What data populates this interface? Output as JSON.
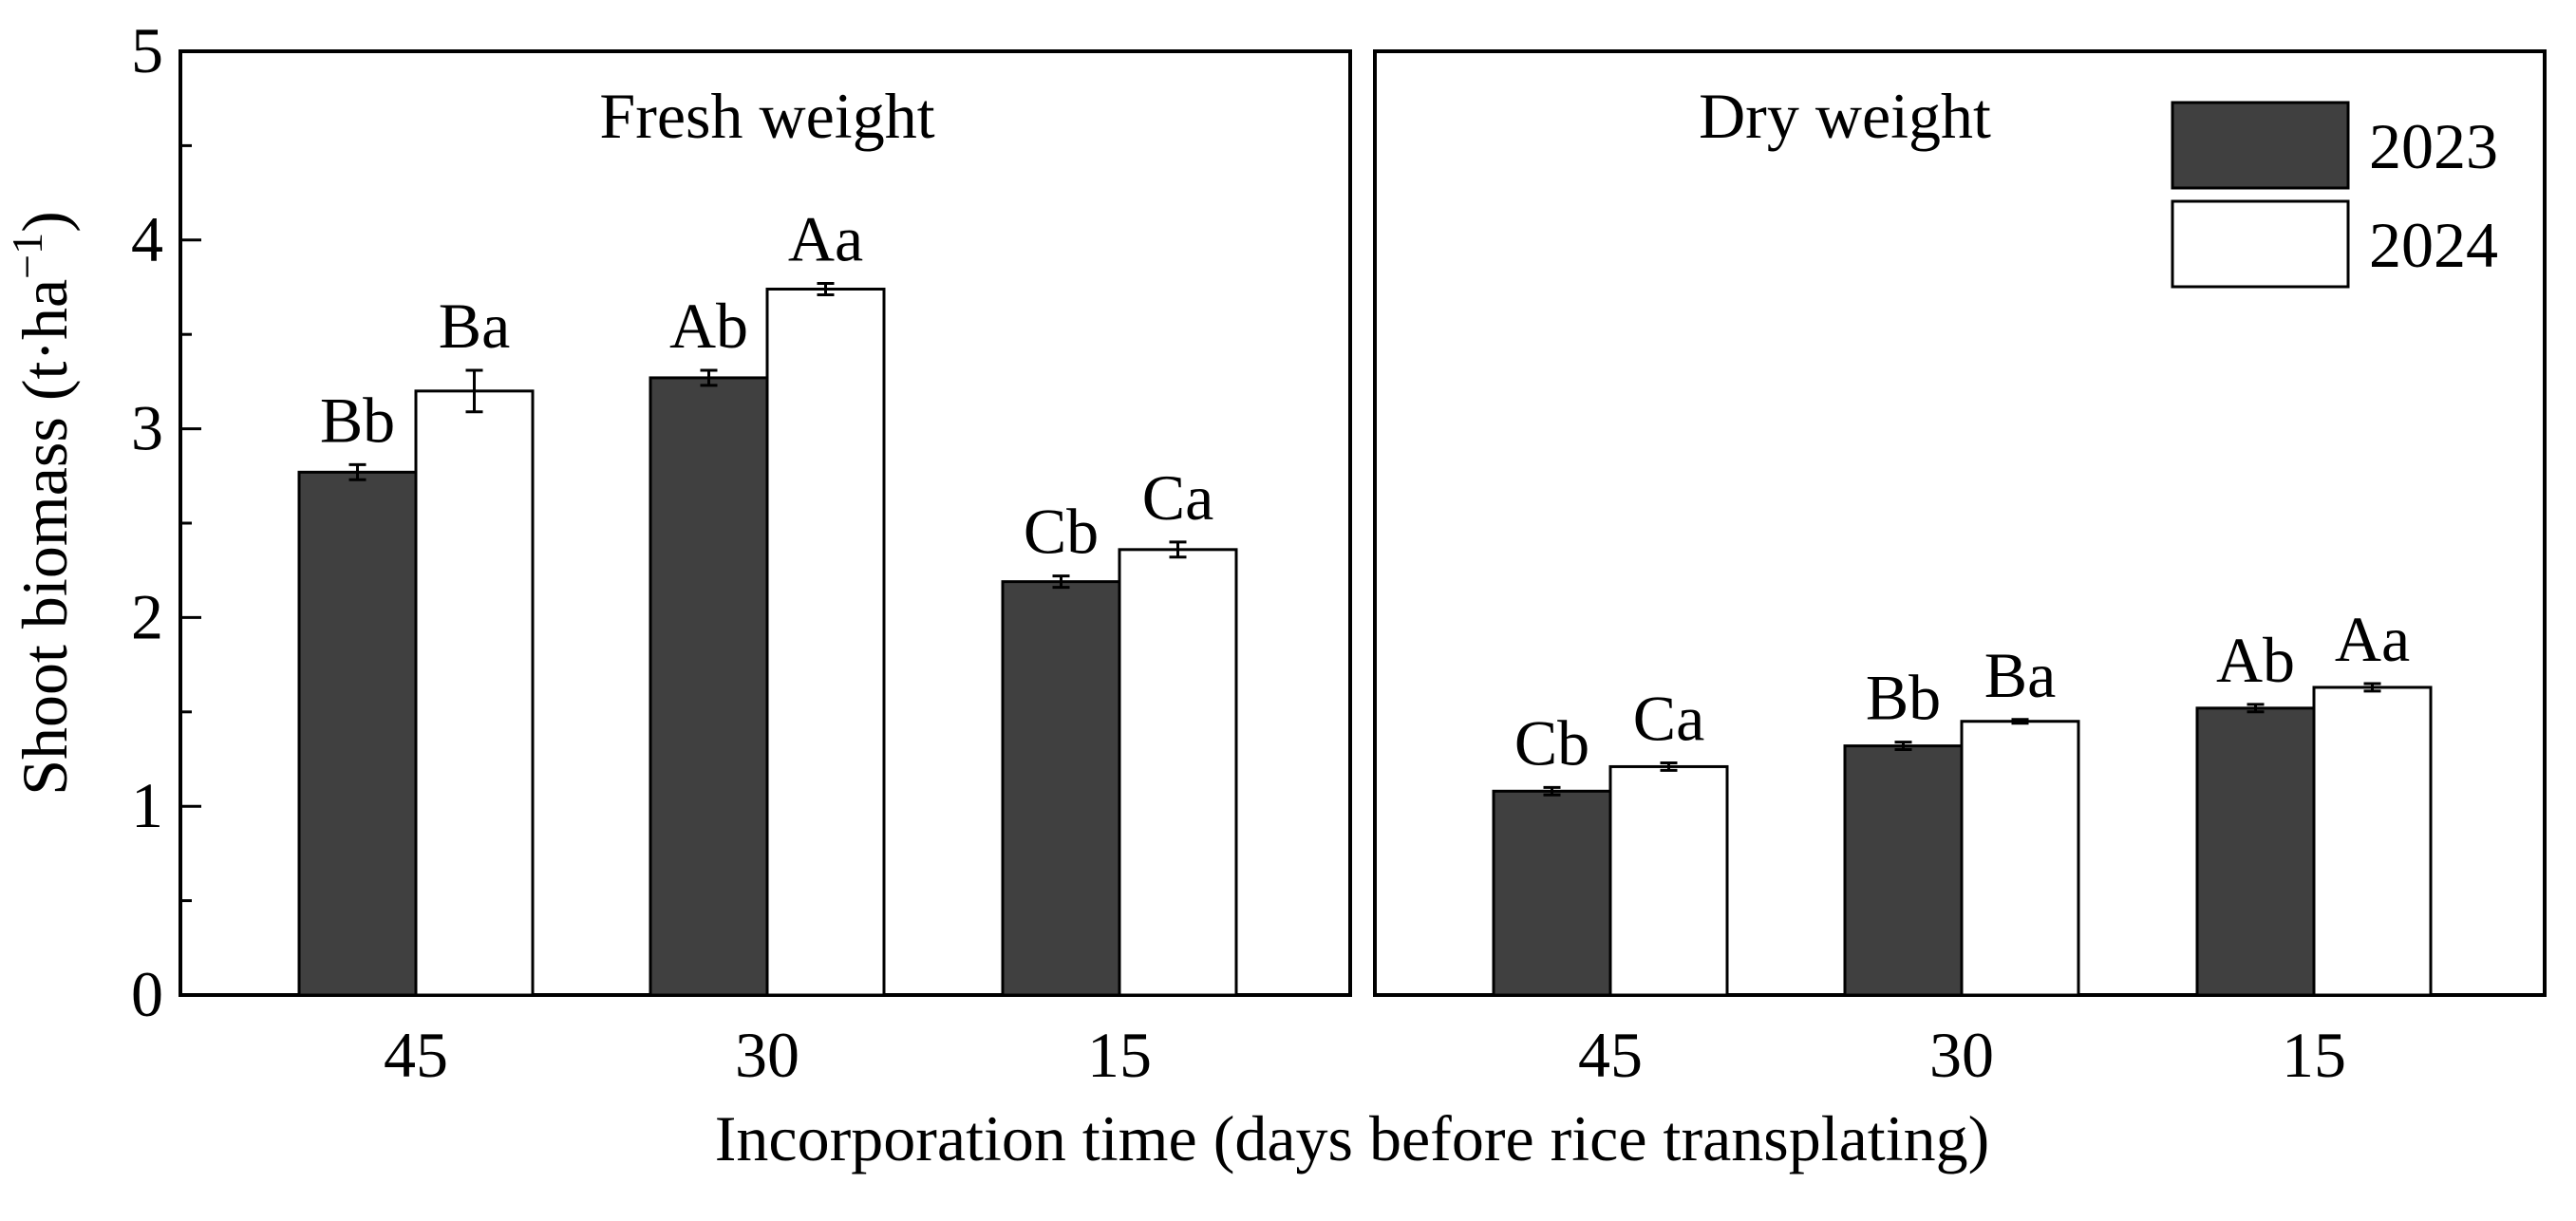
{
  "figure": {
    "ylabel_main": "Shoot biomass (t·ha",
    "ylabel_sup": "−1",
    "ylabel_close": ")",
    "xlabel": "Incorporation time (days before rice transplating)"
  },
  "colors": {
    "y2023": "#404040",
    "y2024": "#ffffff",
    "axis": "#000000"
  },
  "chart_data": [
    {
      "type": "bar",
      "title": "Fresh weight",
      "categories": [
        "45",
        "30",
        "15"
      ],
      "ylim": [
        0,
        5
      ],
      "yticks": [
        0,
        1,
        2,
        3,
        4,
        5
      ],
      "yticklabels": [
        "0",
        "1",
        "2",
        "3",
        "4",
        "5"
      ],
      "legend": null,
      "series": [
        {
          "name": "2023",
          "values": [
            2.77,
            3.27,
            2.19
          ],
          "errors": [
            0.04,
            0.04,
            0.03
          ],
          "letters": [
            "Bb",
            "Ab",
            "Cb"
          ]
        },
        {
          "name": "2024",
          "values": [
            3.2,
            3.74,
            2.36
          ],
          "errors": [
            0.11,
            0.03,
            0.04
          ],
          "letters": [
            "Ba",
            "Aa",
            "Ca"
          ]
        }
      ]
    },
    {
      "type": "bar",
      "title": "Dry weight",
      "categories": [
        "45",
        "30",
        "15"
      ],
      "ylim": [
        0,
        5
      ],
      "legend": "top-right",
      "series": [
        {
          "name": "2023",
          "values": [
            1.08,
            1.32,
            1.52
          ],
          "errors": [
            0.02,
            0.02,
            0.02
          ],
          "letters": [
            "Cb",
            "Bb",
            "Ab"
          ]
        },
        {
          "name": "2024",
          "values": [
            1.21,
            1.45,
            1.63
          ],
          "errors": [
            0.02,
            0.01,
            0.02
          ],
          "letters": [
            "Ca",
            "Ba",
            "Aa"
          ]
        }
      ]
    }
  ]
}
